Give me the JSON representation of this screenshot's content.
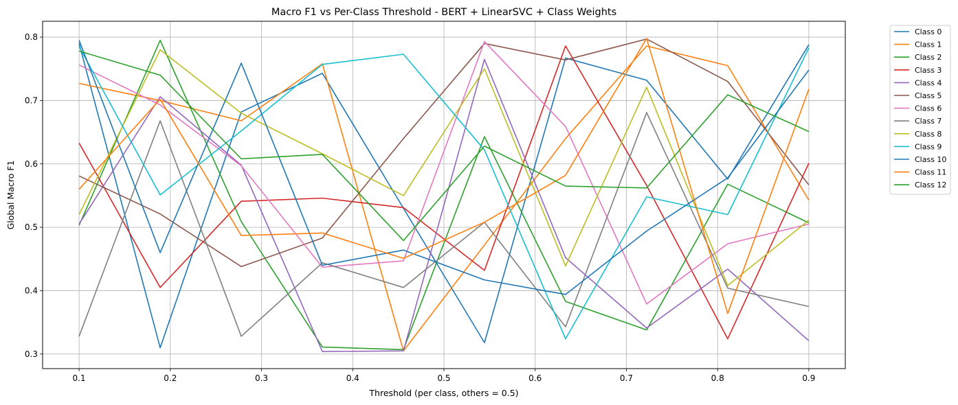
{
  "chart_data": {
    "type": "line",
    "title": "Macro F1 vs Per-Class Threshold - BERT + LinearSVC + Class Weights",
    "xlabel": "Threshold (per class, others = 0.5)",
    "ylabel": "Global Macro F1",
    "xlim": [
      0.06,
      0.94
    ],
    "ylim": [
      0.277,
      0.825
    ],
    "x_ticks": [
      0.1,
      0.2,
      0.3,
      0.4,
      0.5,
      0.6,
      0.7,
      0.8,
      0.9
    ],
    "x_tick_labels": [
      "0.1",
      "0.2",
      "0.3",
      "0.4",
      "0.5",
      "0.6",
      "0.7",
      "0.8",
      "0.9"
    ],
    "y_ticks": [
      0.3,
      0.4,
      0.5,
      0.6,
      0.7,
      0.8
    ],
    "y_tick_labels": [
      "0.3",
      "0.4",
      "0.5",
      "0.6",
      "0.7",
      "0.8"
    ],
    "grid": true,
    "legend_position": "outside-top-right",
    "x": [
      0.1,
      0.1889,
      0.2778,
      0.3667,
      0.4556,
      0.5444,
      0.6333,
      0.7222,
      0.8111,
      0.9
    ],
    "series": [
      {
        "name": "Class 0",
        "color": "#1f77b4",
        "values": [
          0.79,
          0.31,
          0.682,
          0.743,
          0.53,
          0.318,
          0.767,
          0.732,
          0.576,
          0.788
        ]
      },
      {
        "name": "Class 1",
        "color": "#ff7f0e",
        "values": [
          0.727,
          0.7,
          0.668,
          0.758,
          0.305,
          0.472,
          0.64,
          0.786,
          0.755,
          0.543
        ]
      },
      {
        "name": "Class 2",
        "color": "#2ca02c",
        "values": [
          0.503,
          0.795,
          0.509,
          0.311,
          0.307,
          0.643,
          0.383,
          0.338,
          0.568,
          0.507
        ]
      },
      {
        "name": "Class 3",
        "color": "#d62728",
        "values": [
          0.633,
          0.405,
          0.541,
          0.546,
          0.531,
          0.432,
          0.786,
          0.566,
          0.324,
          0.601
        ]
      },
      {
        "name": "Class 4",
        "color": "#9467bd",
        "values": [
          0.505,
          0.706,
          0.598,
          0.304,
          0.305,
          0.765,
          0.452,
          0.341,
          0.434,
          0.321
        ]
      },
      {
        "name": "Class 5",
        "color": "#8c564b",
        "values": [
          0.581,
          0.521,
          0.438,
          0.483,
          0.64,
          0.79,
          0.764,
          0.797,
          0.73,
          0.567
        ]
      },
      {
        "name": "Class 6",
        "color": "#e377c2",
        "values": [
          0.756,
          0.693,
          0.597,
          0.437,
          0.447,
          0.793,
          0.659,
          0.379,
          0.474,
          0.505
        ]
      },
      {
        "name": "Class 7",
        "color": "#7f7f7f",
        "values": [
          0.328,
          0.668,
          0.328,
          0.444,
          0.405,
          0.508,
          0.343,
          0.681,
          0.404,
          0.375
        ]
      },
      {
        "name": "Class 8",
        "color": "#bcbd22",
        "values": [
          0.52,
          0.78,
          0.68,
          0.616,
          0.55,
          0.75,
          0.439,
          0.721,
          0.408,
          0.511
        ]
      },
      {
        "name": "Class 9",
        "color": "#17becf",
        "values": [
          0.785,
          0.551,
          0.652,
          0.757,
          0.773,
          0.622,
          0.324,
          0.548,
          0.52,
          0.783
        ]
      },
      {
        "name": "Class 10",
        "color": "#1f77b4",
        "values": [
          0.795,
          0.46,
          0.759,
          0.44,
          0.464,
          0.417,
          0.394,
          0.494,
          0.578,
          0.748
        ]
      },
      {
        "name": "Class 11",
        "color": "#ff7f0e",
        "values": [
          0.56,
          0.702,
          0.487,
          0.491,
          0.451,
          0.508,
          0.582,
          0.798,
          0.364,
          0.718
        ]
      },
      {
        "name": "Class 12",
        "color": "#2ca02c",
        "values": [
          0.778,
          0.74,
          0.608,
          0.615,
          0.479,
          0.628,
          0.565,
          0.562,
          0.709,
          0.651
        ]
      }
    ]
  }
}
